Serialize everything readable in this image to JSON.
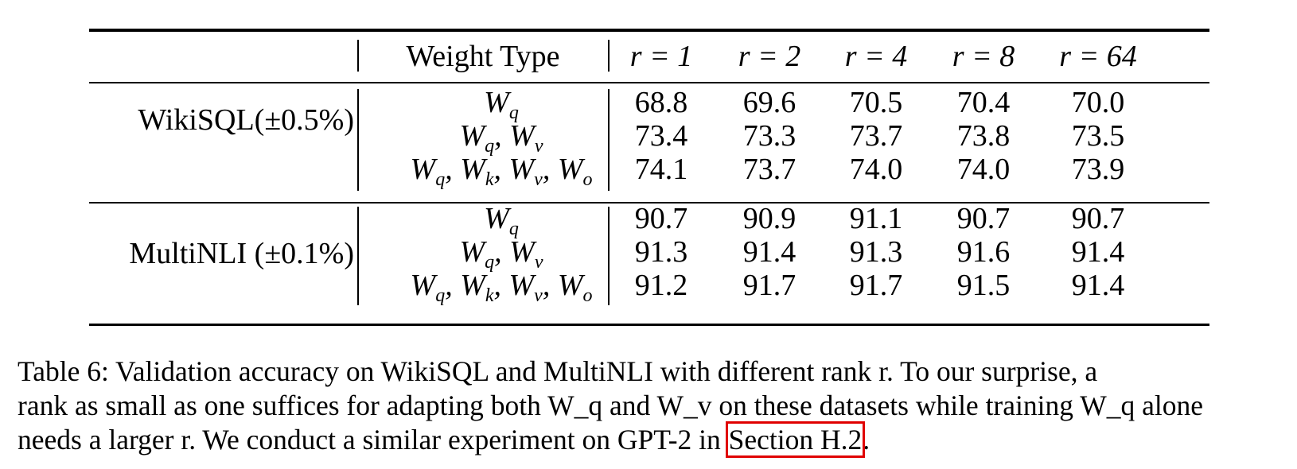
{
  "table": {
    "header": {
      "weight_type": "Weight Type",
      "ranks": [
        "r = 1",
        "r = 2",
        "r = 4",
        "r = 8",
        "r = 64"
      ]
    },
    "groups": [
      {
        "dataset": "WikiSQL(±0.5%)",
        "rows": [
          {
            "weight": "W_q",
            "values": [
              "68.8",
              "69.6",
              "70.5",
              "70.4",
              "70.0"
            ]
          },
          {
            "weight": "W_q, W_v",
            "values": [
              "73.4",
              "73.3",
              "73.7",
              "73.8",
              "73.5"
            ]
          },
          {
            "weight": "W_q, W_k, W_v, W_o",
            "values": [
              "74.1",
              "73.7",
              "74.0",
              "74.0",
              "73.9"
            ]
          }
        ]
      },
      {
        "dataset": "MultiNLI (±0.1%)",
        "rows": [
          {
            "weight": "W_q",
            "values": [
              "90.7",
              "90.9",
              "91.1",
              "90.7",
              "90.7"
            ]
          },
          {
            "weight": "W_q, W_v",
            "values": [
              "91.3",
              "91.4",
              "91.3",
              "91.6",
              "91.4"
            ]
          },
          {
            "weight": "W_q, W_k, W_v, W_o",
            "values": [
              "91.2",
              "91.7",
              "91.7",
              "91.5",
              "91.4"
            ]
          }
        ]
      }
    ]
  },
  "caption": {
    "line1": "Table 6: Validation accuracy on WikiSQL and MultiNLI with different rank r. To our surprise, a",
    "line2": "rank as small as one suffices for adapting both W_q and W_v on these datasets while training W_q alone",
    "line3_prefix": "needs a larger r. We conduct a similar experiment on GPT-2 in ",
    "link": "Section H.2",
    "line3_suffix": "."
  }
}
